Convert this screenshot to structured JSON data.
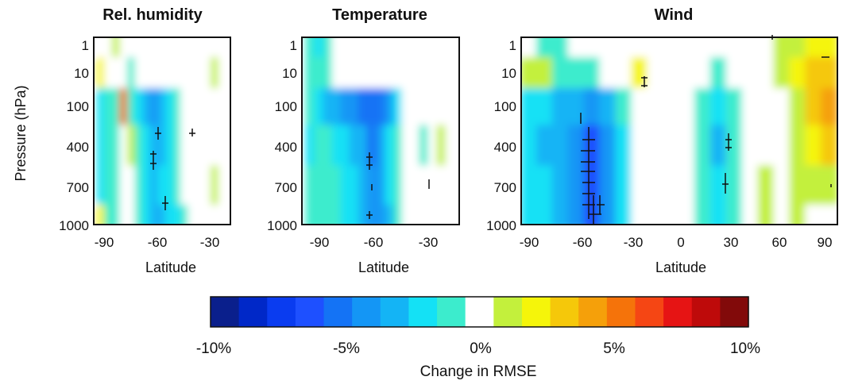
{
  "figure": {
    "y_axis_label": "Pressure (hPa)",
    "colorbar_label": "Change in RMSE"
  },
  "chart_data": [
    {
      "type": "heatmap",
      "title": "Rel. humidity",
      "xlabel": "Latitude",
      "ylabel": "Pressure (hPa)",
      "xlim": [
        -100,
        -10
      ],
      "x_ticks": [
        "-90",
        "-60",
        "-30"
      ],
      "y_ticks": [
        "1",
        "10",
        "100",
        "400",
        "700",
        "1000"
      ],
      "lat_samples": [
        -95,
        -90,
        -85,
        -80,
        -75,
        -70,
        -65,
        -60,
        -55,
        -50,
        -45,
        -40,
        -35,
        -30,
        -25,
        -20,
        -15
      ],
      "pressure_samples": [
        "1",
        "10",
        "100",
        "400",
        "700",
        "1000"
      ],
      "values_pct": [
        [
          0.5,
          0,
          1.5,
          0,
          0,
          0,
          0,
          0,
          0,
          0,
          0,
          0,
          0,
          0,
          0,
          0,
          0
        ],
        [
          2.5,
          0.5,
          0,
          0,
          -1,
          0,
          0,
          0,
          0,
          0,
          0,
          0,
          0,
          0,
          0,
          1,
          0
        ],
        [
          -2,
          -1.5,
          -1,
          5,
          -1,
          -2,
          -3,
          -4,
          -3,
          -2,
          -1,
          0,
          0,
          0,
          0,
          0,
          0
        ],
        [
          -2,
          -1.5,
          -1,
          -0.5,
          1,
          -1.5,
          -2.5,
          -3.5,
          -3,
          -2,
          -1.5,
          0,
          0,
          0,
          0,
          0,
          0
        ],
        [
          -2,
          -1.5,
          -1,
          -0.5,
          0,
          -1.5,
          -2.5,
          -3,
          -2.5,
          -2,
          -1,
          -0.5,
          0,
          0,
          0,
          1,
          0
        ],
        [
          2.5,
          -1,
          -1,
          -0.5,
          0,
          -1.5,
          -2.5,
          -3,
          -3,
          -2.5,
          -2,
          -1,
          0,
          0,
          0,
          0,
          0
        ]
      ]
    },
    {
      "type": "heatmap",
      "title": "Temperature",
      "xlabel": "Latitude",
      "xlim": [
        -100,
        -10
      ],
      "x_ticks": [
        "-90",
        "-60",
        "-30"
      ],
      "y_ticks": [
        "1",
        "10",
        "100",
        "400",
        "700",
        "1000"
      ],
      "lat_samples": [
        -95,
        -90,
        -85,
        -80,
        -75,
        -70,
        -65,
        -60,
        -55,
        -50,
        -45,
        -40,
        -35,
        -30,
        -25,
        -20,
        -15
      ],
      "pressure_samples": [
        "1",
        "10",
        "100",
        "400",
        "700",
        "1000"
      ],
      "values_pct": [
        [
          -1,
          -2,
          -1,
          0,
          0,
          0,
          0,
          0,
          0,
          0,
          0,
          0,
          0,
          0,
          0,
          0,
          0
        ],
        [
          -1,
          -1.5,
          -1,
          0,
          0,
          0,
          0,
          0,
          0,
          0,
          0,
          0,
          0,
          0,
          0,
          0,
          0
        ],
        [
          -1.5,
          -2,
          -3,
          -3.5,
          -4,
          -4.5,
          -5,
          -5.5,
          -5,
          -4,
          -2,
          0,
          0,
          0,
          0,
          0,
          0
        ],
        [
          -2,
          -1.5,
          -1.5,
          -2,
          -2.5,
          -3,
          -3.5,
          -5,
          -4,
          -2.5,
          -1.5,
          0,
          0,
          -1,
          0,
          1,
          0
        ],
        [
          -1.5,
          -1,
          -1,
          -1.5,
          -2,
          -2.5,
          -3.5,
          -4.5,
          -4,
          -2.5,
          -1.5,
          0,
          0,
          0,
          0,
          0,
          0
        ],
        [
          -1,
          -1,
          -1,
          -1.5,
          -2,
          -2.5,
          -3.5,
          -4.5,
          -4,
          -3,
          -1.5,
          0,
          0,
          0,
          0,
          0,
          0
        ]
      ]
    },
    {
      "type": "heatmap",
      "title": "Wind",
      "xlabel": "Latitude",
      "xlim": [
        -100,
        100
      ],
      "x_ticks": [
        "-90",
        "-60",
        "-30",
        "0",
        "30",
        "60",
        "90"
      ],
      "y_ticks": [
        "1",
        "10",
        "100",
        "400",
        "700",
        "1000"
      ],
      "lat_samples": [
        -95,
        -85,
        -75,
        -65,
        -55,
        -45,
        -35,
        -25,
        -15,
        -5,
        5,
        15,
        25,
        35,
        45,
        55,
        65,
        75,
        85,
        95
      ],
      "pressure_samples": [
        "1",
        "10",
        "100",
        "400",
        "700",
        "1000"
      ],
      "values_pct": [
        [
          0,
          -1.5,
          -1,
          0,
          0,
          0,
          0,
          0,
          0,
          0,
          0,
          0,
          0,
          0,
          0,
          0,
          1.5,
          1,
          2,
          2
        ],
        [
          1.5,
          1,
          -1,
          -1.5,
          -1,
          0,
          0,
          2,
          0,
          0,
          0,
          0,
          -1,
          0,
          0,
          0,
          1.5,
          2,
          3,
          3.5
        ],
        [
          -2,
          -2.5,
          -3,
          -3.5,
          -4.5,
          -3,
          -1.5,
          -0.5,
          0,
          0,
          0,
          -1,
          -2,
          -1,
          0,
          0,
          0,
          1.5,
          3,
          4
        ],
        [
          -2.5,
          -3,
          -3.5,
          -4.5,
          -6,
          -4,
          -2,
          0,
          0,
          0,
          0,
          -1.5,
          -3,
          -1.5,
          0,
          0,
          0,
          1,
          2.5,
          3
        ],
        [
          -2,
          -2.5,
          -3,
          -4.5,
          -6,
          -4.5,
          -2,
          0,
          0,
          0,
          0,
          -1,
          -2.5,
          -1,
          0,
          1,
          0,
          1,
          1.5,
          1.5
        ],
        [
          -2,
          -2.5,
          -3,
          -4.5,
          -6,
          -4.5,
          -2,
          0,
          0,
          0,
          0,
          -1.5,
          -2.5,
          -1,
          0,
          1,
          0,
          1,
          0,
          0
        ]
      ]
    }
  ],
  "colorbar": {
    "type": "colorbar",
    "range_pct": [
      -10,
      10
    ],
    "tick_labels": [
      "-10%",
      "-5%",
      "0%",
      "5%",
      "10%"
    ],
    "colors": [
      "#0a1f8c",
      "#0028c8",
      "#0a3cf0",
      "#1e50ff",
      "#1473f5",
      "#1496f5",
      "#14b4f5",
      "#14e1f5",
      "#3ceccd",
      "#ffffff",
      "#c3f03c",
      "#f5f50a",
      "#f5c80a",
      "#f5a00a",
      "#f5730a",
      "#f54614",
      "#e61414",
      "#be0a0a",
      "#820a0a"
    ]
  }
}
